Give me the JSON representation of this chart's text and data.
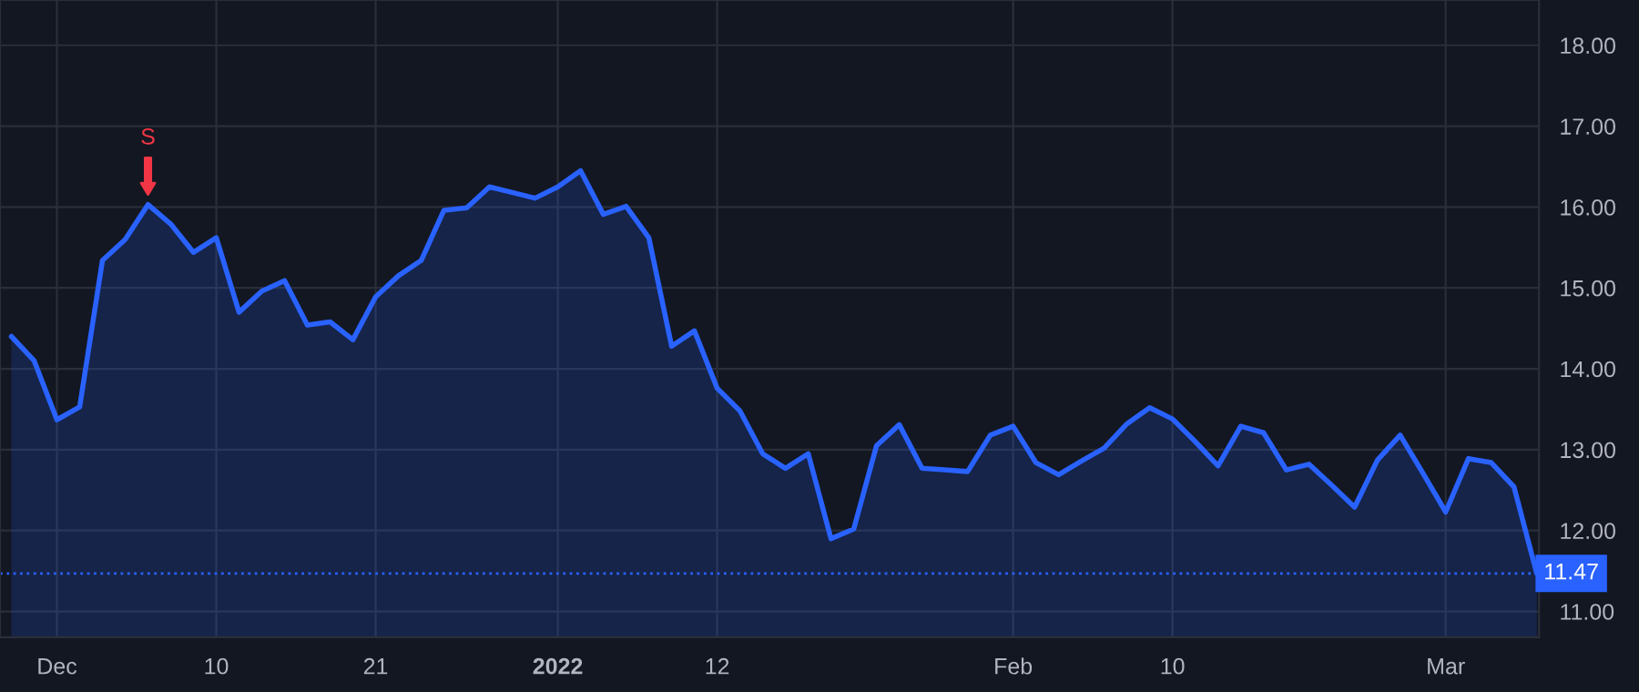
{
  "chart_data": {
    "type": "area",
    "categories": [
      null,
      null,
      "Dec",
      null,
      null,
      null,
      null,
      null,
      null,
      "10",
      null,
      null,
      null,
      null,
      null,
      null,
      "21",
      null,
      null,
      null,
      null,
      null,
      null,
      null,
      "2022",
      null,
      null,
      null,
      null,
      null,
      null,
      "12",
      null,
      null,
      null,
      null,
      null,
      null,
      null,
      null,
      null,
      null,
      null,
      null,
      "Feb",
      null,
      null,
      null,
      null,
      null,
      null,
      "10",
      null,
      null,
      null,
      null,
      null,
      null,
      null,
      null,
      null,
      null,
      null,
      "Mar",
      null,
      null,
      null,
      null
    ],
    "series": [
      {
        "color": "#2962ff",
        "values": [
          14.4,
          14.1,
          13.37,
          13.53,
          15.34,
          15.6,
          16.03,
          15.79,
          15.44,
          15.62,
          14.7,
          14.96,
          15.09,
          14.54,
          14.58,
          14.36,
          14.89,
          15.15,
          15.34,
          15.96,
          15.99,
          16.25,
          16.18,
          16.11,
          16.25,
          16.45,
          15.91,
          16.01,
          15.62,
          14.28,
          14.47,
          13.76,
          13.48,
          12.95,
          12.77,
          12.95,
          11.9,
          12.02,
          13.05,
          13.31,
          12.77,
          12.75,
          12.73,
          13.18,
          13.29,
          12.84,
          12.69,
          12.86,
          13.02,
          13.32,
          13.52,
          13.38,
          13.1,
          12.8,
          13.29,
          13.21,
          12.75,
          12.82,
          12.56,
          12.29,
          12.87,
          13.18,
          12.71,
          12.23,
          12.89,
          12.84,
          12.54,
          11.47
        ]
      }
    ],
    "ylim": [
      10.68,
      18.56
    ],
    "yticks": [
      {
        "value": 11,
        "label": "11.00"
      },
      {
        "value": 12,
        "label": "12.00"
      },
      {
        "value": 13,
        "label": "13.00"
      },
      {
        "value": 14,
        "label": "14.00"
      },
      {
        "value": 15,
        "label": "15.00"
      },
      {
        "value": 16,
        "label": "16.00"
      },
      {
        "value": 17,
        "label": "17.00"
      },
      {
        "value": 18,
        "label": "18.00"
      }
    ],
    "ref_lines": [
      {
        "axis": "y",
        "value": 11.47,
        "label": "11.47",
        "color": "#2962ff",
        "line_style": "dotted"
      }
    ],
    "annotations": [
      {
        "text": "S",
        "y": 16.03
      }
    ],
    "grid": true,
    "legend": false
  }
}
